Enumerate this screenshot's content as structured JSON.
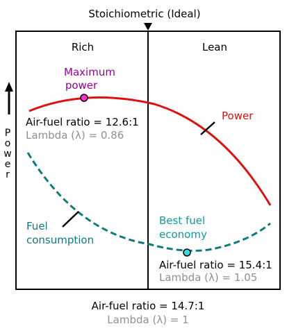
{
  "top_label": "Stoichiometric (Ideal)",
  "regions": {
    "rich": "Rich",
    "lean": "Lean"
  },
  "y_axis_label": [
    "P",
    "o",
    "w",
    "e",
    "r"
  ],
  "max_power": {
    "title_line1": "Maximum",
    "title_line2": "power",
    "ratio": "Air-fuel ratio = 12.6:1",
    "lambda": "Lambda (λ) = 0.86"
  },
  "power_label": "Power",
  "fuel_label": {
    "line1": "Fuel",
    "line2": "consumption"
  },
  "best_fuel": {
    "title_line1": "Best fuel",
    "title_line2": "economy",
    "ratio": "Air-fuel ratio = 15.4:1",
    "lambda": "Lambda (λ) = 1.05"
  },
  "bottom": {
    "ratio": "Air-fuel ratio = 14.7:1",
    "lambda": "Lambda (λ) = 1"
  },
  "colors": {
    "power": "#dd1111",
    "fuel": "#117a7a",
    "max_power": "#990099",
    "best_fuel": "#119a9a",
    "gray": "#909090",
    "black": "#000000",
    "marker_max_fill": "#ff33cc",
    "marker_best_fill": "#33dddd"
  }
}
